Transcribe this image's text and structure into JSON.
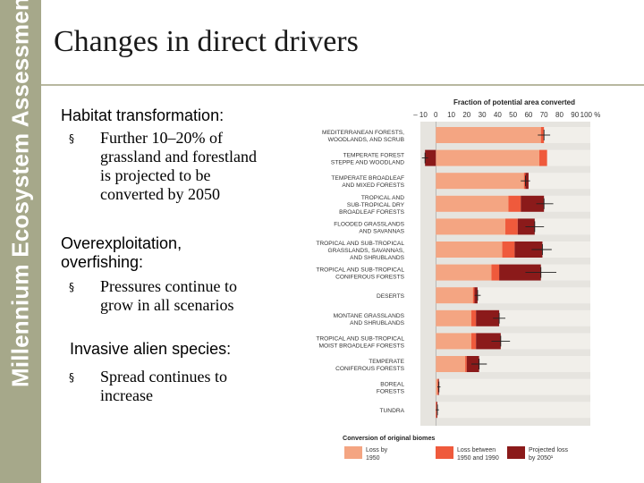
{
  "sidebar": {
    "text": "Millennium Ecosystem Assessment"
  },
  "slide": {
    "title": "Changes in direct drivers",
    "sections": [
      {
        "heading": "Habitat transformation:",
        "bullet": [
          "Further 10–20% of",
          "grassland and forestland",
          "is projected to be",
          "converted by 2050"
        ]
      },
      {
        "heading": [
          "Overexploitation,",
          "overfishing:"
        ],
        "bullet": [
          "Pressures continue to",
          "grow in all scenarios"
        ]
      },
      {
        "heading": "Invasive alien species:",
        "bullet": [
          "Spread continues to",
          "increase"
        ]
      }
    ],
    "bullet_marker": "§"
  },
  "chart_data": {
    "type": "bar",
    "subtype": "stacked-horizontal",
    "title": "Fraction of potential area converted",
    "x_ticks": [
      "– 10",
      "0",
      "10",
      "20",
      "30",
      "40",
      "50",
      "60",
      "70",
      "80",
      "90",
      "100 %"
    ],
    "xlim": [
      -10,
      100
    ],
    "categories": [
      [
        "MEDITERRANEAN FORESTS,",
        "WOODLANDS, AND SCRUB"
      ],
      [
        "TEMPERATE FOREST",
        "STEPPE AND WOODLAND"
      ],
      [
        "TEMPERATE BROADLEAF",
        "AND MIXED FORESTS"
      ],
      [
        "TROPICAL AND",
        "SUB-TROPICAL DRY",
        "BROADLEAF FORESTS"
      ],
      [
        "FLOODED GRASSLANDS",
        "AND SAVANNAS"
      ],
      [
        "TROPICAL AND SUB-TROPICAL",
        "GRASSLANDS, SAVANNAS,",
        "AND SHRUBLANDS"
      ],
      [
        "TROPICAL AND SUB-TROPICAL",
        "CONIFEROUS FORESTS"
      ],
      [
        "DESERTS"
      ],
      [
        "MONTANE GRASSLANDS",
        "AND SHRUBLANDS"
      ],
      [
        "TROPICAL AND SUB-TROPICAL",
        "MOIST BROADLEAF FORESTS"
      ],
      [
        "TEMPERATE",
        "CONIFEROUS FORESTS"
      ],
      [
        "BOREAL",
        "FORESTS"
      ],
      [
        "TUNDRA"
      ]
    ],
    "series": [
      {
        "name": [
          "Loss by",
          "1950"
        ],
        "color": "#f4a582",
        "values": [
          68,
          67,
          57,
          47,
          45,
          43,
          36,
          24,
          23,
          23,
          19,
          1,
          0
        ]
      },
      {
        "name": [
          "Loss between",
          "1950 and 1990"
        ],
        "color": "#ef5a3c",
        "values": [
          2,
          5,
          1,
          8,
          8,
          8,
          5,
          1,
          3,
          3,
          1,
          0.5,
          0.5
        ]
      },
      {
        "name": [
          "Projected loss",
          "by 2050¹"
        ],
        "color": "#8b1a1a",
        "values": [
          0,
          -7,
          2,
          15,
          11,
          18,
          27,
          2,
          15,
          16,
          8,
          0.5,
          0.5
        ]
      }
    ],
    "error_bars": [
      {
        "center": 70,
        "lo": 66,
        "hi": 74
      },
      {
        "center": -7,
        "lo": -9,
        "hi": -5
      },
      {
        "center": 58,
        "lo": 55,
        "hi": 61
      },
      {
        "center": 70,
        "lo": 65,
        "hi": 76
      },
      {
        "center": 64,
        "lo": 58,
        "hi": 70
      },
      {
        "center": 69,
        "lo": 62,
        "hi": 75
      },
      {
        "center": 68,
        "lo": 58,
        "hi": 78
      },
      {
        "center": 27,
        "lo": 25,
        "hi": 29
      },
      {
        "center": 41,
        "lo": 37,
        "hi": 45
      },
      {
        "center": 42,
        "lo": 36,
        "hi": 48
      },
      {
        "center": 28,
        "lo": 23,
        "hi": 33
      },
      {
        "center": 2,
        "lo": 1,
        "hi": 3
      },
      {
        "center": 1,
        "lo": 0,
        "hi": 2
      }
    ],
    "legend": {
      "title": "Conversion of original biomes",
      "position": "bottom"
    },
    "grid": false
  }
}
